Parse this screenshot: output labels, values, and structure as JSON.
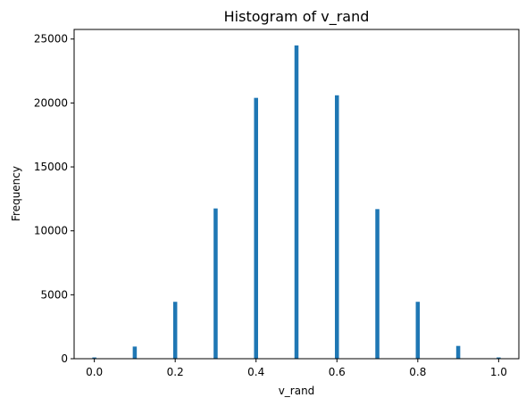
{
  "chart_data": {
    "type": "bar",
    "title": "Histogram of v_rand",
    "xlabel": "v_rand",
    "ylabel": "Frequency",
    "bar_color": "#1f77b4",
    "xlim": [
      -0.05,
      1.05
    ],
    "ylim": [
      0,
      25750
    ],
    "x_ticks": [
      0.0,
      0.2,
      0.4,
      0.6,
      0.8,
      1.0
    ],
    "x_tick_labels": [
      "0.0",
      "0.2",
      "0.4",
      "0.6",
      "0.8",
      "1.0"
    ],
    "y_ticks": [
      0,
      5000,
      10000,
      15000,
      20000,
      25000
    ],
    "y_tick_labels": [
      "0",
      "5000",
      "10000",
      "15000",
      "20000",
      "25000"
    ],
    "bin_width": 0.01,
    "x": [
      0.0,
      0.1,
      0.2,
      0.3,
      0.4,
      0.5,
      0.6,
      0.7,
      0.8,
      0.9,
      1.0
    ],
    "values": [
      100,
      950,
      4450,
      11750,
      20400,
      24500,
      20600,
      11700,
      4450,
      1000,
      100
    ],
    "grid": false
  }
}
